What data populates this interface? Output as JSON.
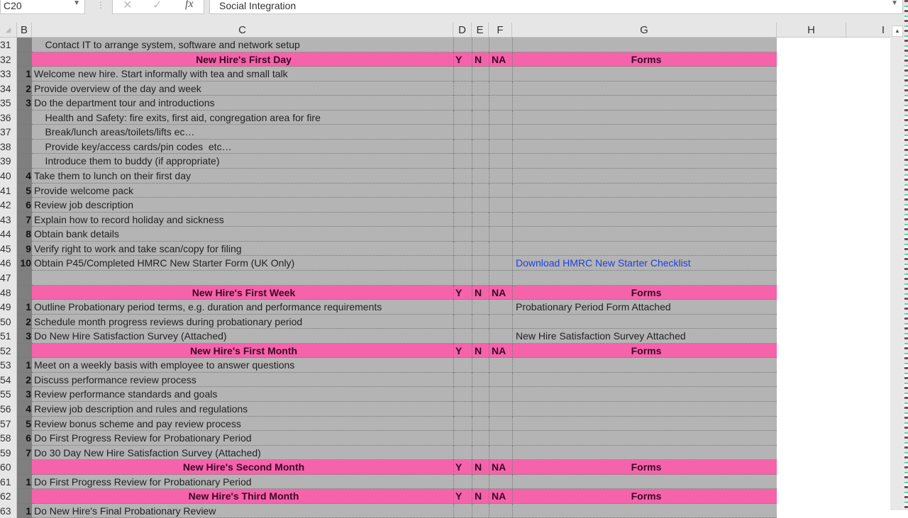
{
  "formula_bar": {
    "name_box": "C20",
    "fx_label": "fx",
    "content": "Social Integration"
  },
  "columns": [
    "B",
    "C",
    "D",
    "E",
    "F",
    "G",
    "H",
    "I"
  ],
  "colors": {
    "section_header": "#f563ab",
    "body": "#b4b4b4",
    "number_column": "#7f7f7f",
    "link": "#1f3fe0"
  },
  "rows": [
    {
      "n": "31",
      "type": "item",
      "b": "",
      "c": "    Contact IT to arrange system, software and network setup",
      "g": ""
    },
    {
      "n": "32",
      "type": "section",
      "c": "New Hire's First Day",
      "d": "Y",
      "e": "N",
      "f": "NA",
      "g": "Forms"
    },
    {
      "n": "33",
      "type": "item",
      "b": "1",
      "c": "Welcome new hire. Start informally with tea and small talk",
      "g": ""
    },
    {
      "n": "34",
      "type": "item",
      "b": "2",
      "c": "Provide overview of the day and week",
      "g": ""
    },
    {
      "n": "35",
      "type": "item",
      "b": "3",
      "c": "Do the department tour and introductions",
      "g": ""
    },
    {
      "n": "36",
      "type": "item",
      "b": "",
      "c": "    Health and Safety: fire exits, first aid, congregation area for fire",
      "g": ""
    },
    {
      "n": "37",
      "type": "item",
      "b": "",
      "c": "    Break/lunch areas/toilets/lifts ec…",
      "g": ""
    },
    {
      "n": "38",
      "type": "item",
      "b": "",
      "c": "    Provide key/access cards/pin codes  etc…",
      "g": ""
    },
    {
      "n": "39",
      "type": "item",
      "b": "",
      "c": "    Introduce them to buddy (if appropriate)",
      "g": ""
    },
    {
      "n": "40",
      "type": "item",
      "b": "4",
      "c": "Take them to lunch on their first day",
      "g": ""
    },
    {
      "n": "41",
      "type": "item",
      "b": "5",
      "c": "Provide welcome pack",
      "g": ""
    },
    {
      "n": "42",
      "type": "item",
      "b": "6",
      "c": "Review job description",
      "g": ""
    },
    {
      "n": "43",
      "type": "item",
      "b": "7",
      "c": "Explain how to record holiday and sickness",
      "g": ""
    },
    {
      "n": "44",
      "type": "item",
      "b": "8",
      "c": "Obtain bank details",
      "g": ""
    },
    {
      "n": "45",
      "type": "item",
      "b": "9",
      "c": "Verify right to work and take scan/copy for filing",
      "g": ""
    },
    {
      "n": "46",
      "type": "item",
      "b": "10",
      "c": "Obtain P45/Completed HMRC New Starter Form (UK Only)",
      "g": "Download HMRC New Starter Checklist",
      "link": true
    },
    {
      "n": "47",
      "type": "item",
      "b": "",
      "c": "",
      "g": ""
    },
    {
      "n": "48",
      "type": "section",
      "c": "New Hire's First Week",
      "d": "Y",
      "e": "N",
      "f": "NA",
      "g": "Forms"
    },
    {
      "n": "49",
      "type": "item",
      "b": "1",
      "c": "Outline Probationary period terms, e.g. duration and performance requirements",
      "g": "Probationary Period Form Attached"
    },
    {
      "n": "50",
      "type": "item",
      "b": "2",
      "c": "Schedule month progress reviews during probationary period",
      "g": ""
    },
    {
      "n": "51",
      "type": "item",
      "b": "3",
      "c": "Do New Hire Satisfaction Survey (Attached)",
      "g": "New Hire Satisfaction Survey Attached"
    },
    {
      "n": "52",
      "type": "section",
      "c": "New Hire's First Month",
      "d": "Y",
      "e": "N",
      "f": "NA",
      "g": "Forms"
    },
    {
      "n": "53",
      "type": "item",
      "b": "1",
      "c": "Meet on a weekly basis with employee to answer questions",
      "g": ""
    },
    {
      "n": "54",
      "type": "item",
      "b": "2",
      "c": "Discuss performance review process",
      "g": ""
    },
    {
      "n": "55",
      "type": "item",
      "b": "3",
      "c": "Review performance standards and goals",
      "g": ""
    },
    {
      "n": "56",
      "type": "item",
      "b": "4",
      "c": "Review job description and rules and regulations",
      "g": ""
    },
    {
      "n": "57",
      "type": "item",
      "b": "5",
      "c": "Review bonus scheme and pay review process",
      "g": ""
    },
    {
      "n": "58",
      "type": "item",
      "b": "6",
      "c": "Do First Progress Review for Probationary Period",
      "g": ""
    },
    {
      "n": "59",
      "type": "item",
      "b": "7",
      "c": "Do 30 Day New Hire Satisfaction Survey (Attached)",
      "g": ""
    },
    {
      "n": "60",
      "type": "section",
      "c": "New Hire's Second Month",
      "d": "Y",
      "e": "N",
      "f": "NA",
      "g": "Forms"
    },
    {
      "n": "61",
      "type": "item",
      "b": "1",
      "c": "Do First Progress Review for Probationary Period",
      "g": ""
    },
    {
      "n": "62",
      "type": "section",
      "c": "New Hire's Third Month",
      "d": "Y",
      "e": "N",
      "f": "NA",
      "g": "Forms"
    },
    {
      "n": "63",
      "type": "item",
      "b": "1",
      "c": "Do New Hire's Final Probationary Review",
      "g": ""
    }
  ]
}
